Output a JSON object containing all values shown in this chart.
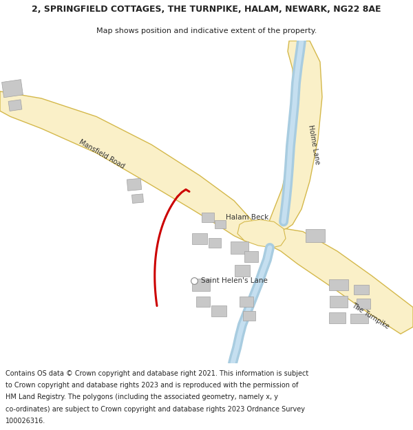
{
  "title_line1": "2, SPRINGFIELD COTTAGES, THE TURNPIKE, HALAM, NEWARK, NG22 8AE",
  "title_line2": "Map shows position and indicative extent of the property.",
  "bg_color": "#ffffff",
  "map_bg": "#f2f2f0",
  "road_fill": "#faf0c8",
  "road_edge": "#d4b84a",
  "river_color": "#a8cce0",
  "building_color": "#c8c8c8",
  "building_edge": "#a0a0a0",
  "red_line_color": "#cc0000",
  "text_color": "#222222",
  "road_label_color": "#333333",
  "footer_lines": [
    "Contains OS data © Crown copyright and database right 2021. This information is subject",
    "to Crown copyright and database rights 2023 and is reproduced with the permission of",
    "HM Land Registry. The polygons (including the associated geometry, namely x, y",
    "co-ordinates) are subject to Crown copyright and database rights 2023 Ordnance Survey",
    "100026316."
  ]
}
